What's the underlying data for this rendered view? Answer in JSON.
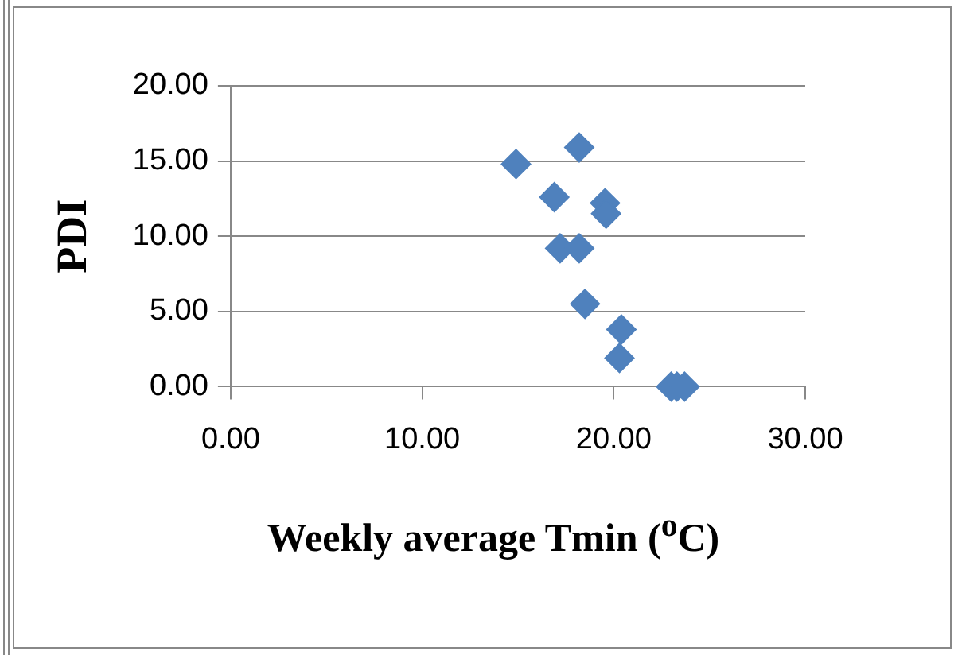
{
  "chart_data": {
    "type": "scatter",
    "xlabel": "Weekly average Tmin ($^{o}$C)",
    "ylabel": "PDI",
    "series": [
      {
        "color": "#4f81bd",
        "x": [
          14.9,
          18.2,
          16.9,
          19.55,
          19.6,
          17.2,
          18.2,
          18.5,
          20.4,
          20.3,
          23.0,
          23.3,
          23.7
        ],
        "values": [
          14.8,
          15.9,
          12.6,
          12.2,
          11.5,
          9.2,
          9.2,
          5.5,
          3.8,
          1.9,
          0,
          0,
          0
        ]
      }
    ],
    "xlim": [
      0,
      30
    ],
    "xticks": [
      {
        "value": 0,
        "label": "0.00"
      },
      {
        "value": 10,
        "label": "10.00"
      },
      {
        "value": 20,
        "label": "20.00"
      },
      {
        "value": 30,
        "label": "30.00"
      }
    ],
    "ylim": [
      0,
      20
    ],
    "yticks": [
      {
        "value": 0,
        "label": "0.00"
      },
      {
        "value": 5,
        "label": "5.00"
      },
      {
        "value": 10,
        "label": "10.00"
      },
      {
        "value": 15,
        "label": "15.00"
      },
      {
        "value": 20,
        "label": "20.00"
      }
    ],
    "grid": "y",
    "legend": false,
    "marker": "diamond"
  }
}
